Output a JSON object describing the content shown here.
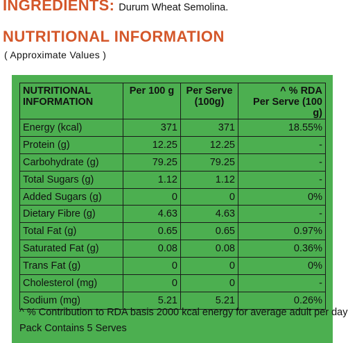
{
  "ingredients": {
    "heading": "INGREDIENTS:",
    "text": "Durum Wheat Semolina."
  },
  "nutrition": {
    "title": "NUTRITIONAL INFORMATION",
    "subtitle": "( Approximate Values )",
    "headers": {
      "name_line1": "NUTRITIONAL",
      "name_line2": "INFORMATION",
      "per100": "Per 100 g",
      "serve_line1": "Per Serve",
      "serve_line2": "(100g)",
      "rda_line1": "^ % RDA",
      "rda_line2": "Per Serve (100 g)"
    },
    "rows": [
      {
        "name": "Energy (kcal)",
        "per100": "371",
        "serve": "371",
        "rda": "18.55%"
      },
      {
        "name": "Protein (g)",
        "per100": "12.25",
        "serve": "12.25",
        "rda": "-"
      },
      {
        "name": "Carbohydrate (g)",
        "per100": "79.25",
        "serve": "79.25",
        "rda": "-"
      },
      {
        "name": "Total Sugars (g)",
        "per100": "1.12",
        "serve": "1.12",
        "rda": "-"
      },
      {
        "name": "Added Sugars (g)",
        "per100": "0",
        "serve": "0",
        "rda": "0%"
      },
      {
        "name": "Dietary Fibre (g)",
        "per100": "4.63",
        "serve": "4.63",
        "rda": "-"
      },
      {
        "name": "Total Fat (g)",
        "per100": "0.65",
        "serve": "0.65",
        "rda": "0.97%"
      },
      {
        "name": "Saturated Fat (g)",
        "per100": "0.08",
        "serve": "0.08",
        "rda": "0.36%"
      },
      {
        "name": "Trans Fat (g)",
        "per100": "0",
        "serve": "0",
        "rda": "0%"
      },
      {
        "name": "Cholesterol (mg)",
        "per100": "0",
        "serve": "0",
        "rda": "-"
      },
      {
        "name": "Sodium (mg)",
        "per100": "5.21",
        "serve": "5.21",
        "rda": "0.26%"
      }
    ],
    "footnote": "^ % Contribution to RDA basis 2000 kcal energy for average adult per day",
    "pack_note": "Pack Contains 5 Serves"
  },
  "colors": {
    "heading": "#d4572a",
    "panel": "#4caf50",
    "border": "#1a1a1a"
  }
}
